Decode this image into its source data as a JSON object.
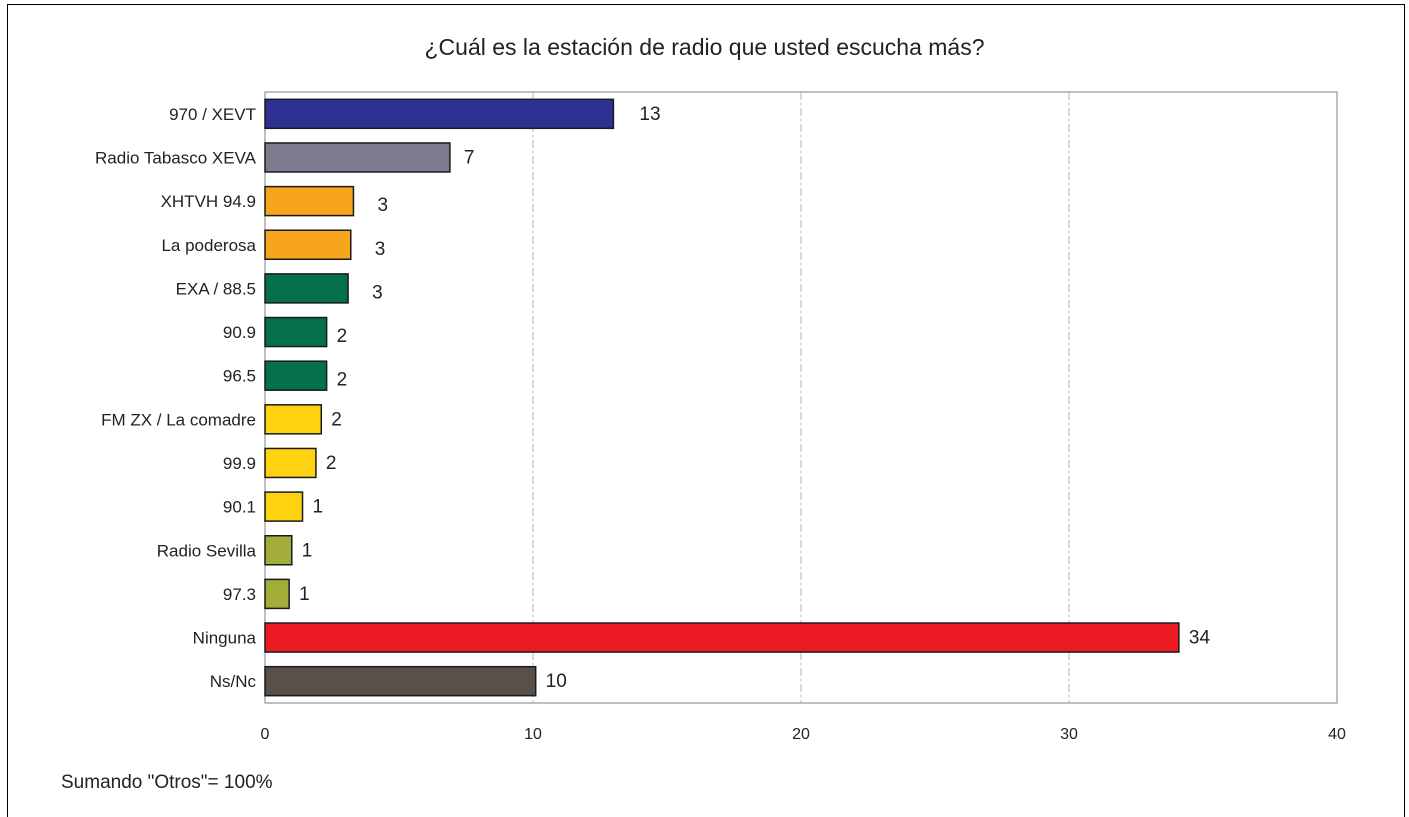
{
  "chart_data": {
    "type": "bar",
    "orientation": "horizontal",
    "title": "¿Cuál es la estación de radio que usted escucha más?",
    "footnote": "Sumando \"Otros\"= 100%",
    "categories": [
      "970 / XEVT",
      "Radio Tabasco XEVA",
      "XHTVH 94.9",
      "La poderosa",
      "EXA / 88.5",
      "90.9",
      "96.5",
      "FM ZX / La comadre",
      "99.9",
      "90.1",
      "Radio Sevilla",
      "97.3",
      "Ninguna",
      "Ns/Nc"
    ],
    "values": [
      13,
      6.9,
      3.3,
      3.2,
      3.1,
      2.3,
      2.3,
      2.1,
      1.9,
      1.4,
      1.0,
      0.9,
      34.1,
      10.1
    ],
    "data_labels": [
      "13",
      "7",
      "3",
      "3",
      "3",
      "2",
      "2",
      "2",
      "2",
      "1",
      "1",
      "1",
      "34",
      "10"
    ],
    "colors": [
      "#2e3192",
      "#807a8e",
      "#f7a51d",
      "#f7a51d",
      "#03704a",
      "#03704a",
      "#03704a",
      "#fdd20e",
      "#fdd20e",
      "#fdd20e",
      "#a3ae3a",
      "#a3ae3a",
      "#ed1c24",
      "#5a4f4b"
    ],
    "xlim": [
      0,
      40
    ],
    "xticks": [
      0,
      10,
      20,
      30,
      40
    ],
    "grid": true
  }
}
